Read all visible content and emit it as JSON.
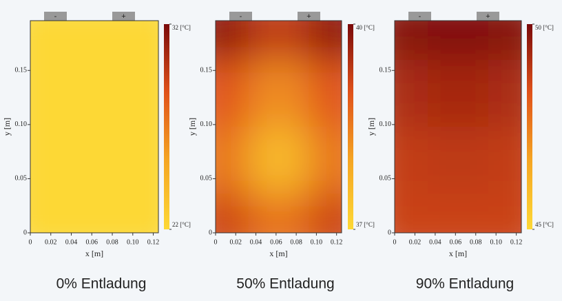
{
  "chart_data": [
    {
      "type": "heatmap",
      "title": "0% Entladung",
      "xlabel": "x [m]",
      "ylabel": "y [m]",
      "terminals": [
        "-",
        "+"
      ],
      "xlim": [
        0,
        0.125
      ],
      "ylim": [
        0,
        0.196
      ],
      "xticks": [
        0,
        0.02,
        0.04,
        0.06,
        0.08,
        {
          "value": 0.1,
          "label": "0.10"
        },
        0.12
      ],
      "yticks": [
        0,
        0.05,
        {
          "value": 0.1,
          "label": "0.10"
        },
        0.15
      ],
      "clim": [
        22,
        32
      ],
      "cticks": [
        {
          "value": 22,
          "label": "22 [°C]"
        },
        {
          "value": 32,
          "label": "32 [°C]"
        }
      ],
      "colormap": [
        "#fdd835",
        "#f5a623",
        "#e0521a",
        "#7a0a0a"
      ],
      "z": [
        [
          22,
          22,
          22
        ],
        [
          22,
          22,
          22
        ],
        [
          22,
          22,
          22
        ],
        [
          22,
          22,
          22
        ]
      ]
    },
    {
      "type": "heatmap",
      "title": "50% Entladung",
      "xlabel": "x [m]",
      "ylabel": "y [m]",
      "terminals": [
        "-",
        "+"
      ],
      "xlim": [
        0,
        0.125
      ],
      "ylim": [
        0,
        0.196
      ],
      "xticks": [
        0,
        0.02,
        0.04,
        0.06,
        0.08,
        {
          "value": 0.1,
          "label": "0.10"
        },
        0.12
      ],
      "yticks": [
        0,
        0.05,
        {
          "value": 0.1,
          "label": "0.10"
        },
        0.15
      ],
      "clim": [
        37,
        40
      ],
      "cticks": [
        {
          "value": 37,
          "label": "37 [°C]"
        },
        {
          "value": 40,
          "label": "40 [°C]"
        }
      ],
      "colormap": [
        "#fdd835",
        "#f5a623",
        "#e0521a",
        "#7a0a0a"
      ],
      "z": [
        [
          39.8,
          39.3,
          39.8
        ],
        [
          39.0,
          38.3,
          39.0
        ],
        [
          38.6,
          37.6,
          38.6
        ],
        [
          39.2,
          38.6,
          39.2
        ]
      ]
    },
    {
      "type": "heatmap",
      "title": "90% Entladung",
      "xlabel": "x [m]",
      "ylabel": "y [m]",
      "terminals": [
        "-",
        "+"
      ],
      "xlim": [
        0,
        0.125
      ],
      "ylim": [
        0,
        0.196
      ],
      "xticks": [
        0,
        0.02,
        0.04,
        0.06,
        0.08,
        {
          "value": 0.1,
          "label": "0.10"
        },
        0.12
      ],
      "yticks": [
        0,
        0.05,
        {
          "value": 0.1,
          "label": "0.10"
        },
        0.15
      ],
      "clim": [
        45,
        50
      ],
      "cticks": [
        {
          "value": 45,
          "label": "45 [°C]"
        },
        {
          "value": 50,
          "label": "50 [°C]"
        }
      ],
      "colormap": [
        "#fdd835",
        "#f5a623",
        "#e0521a",
        "#7a0a0a"
      ],
      "z": [
        [
          49.8,
          49.9,
          49.8
        ],
        [
          49.2,
          49.3,
          49.2
        ],
        [
          48.8,
          48.9,
          48.8
        ],
        [
          48.7,
          48.7,
          48.7
        ]
      ]
    }
  ]
}
